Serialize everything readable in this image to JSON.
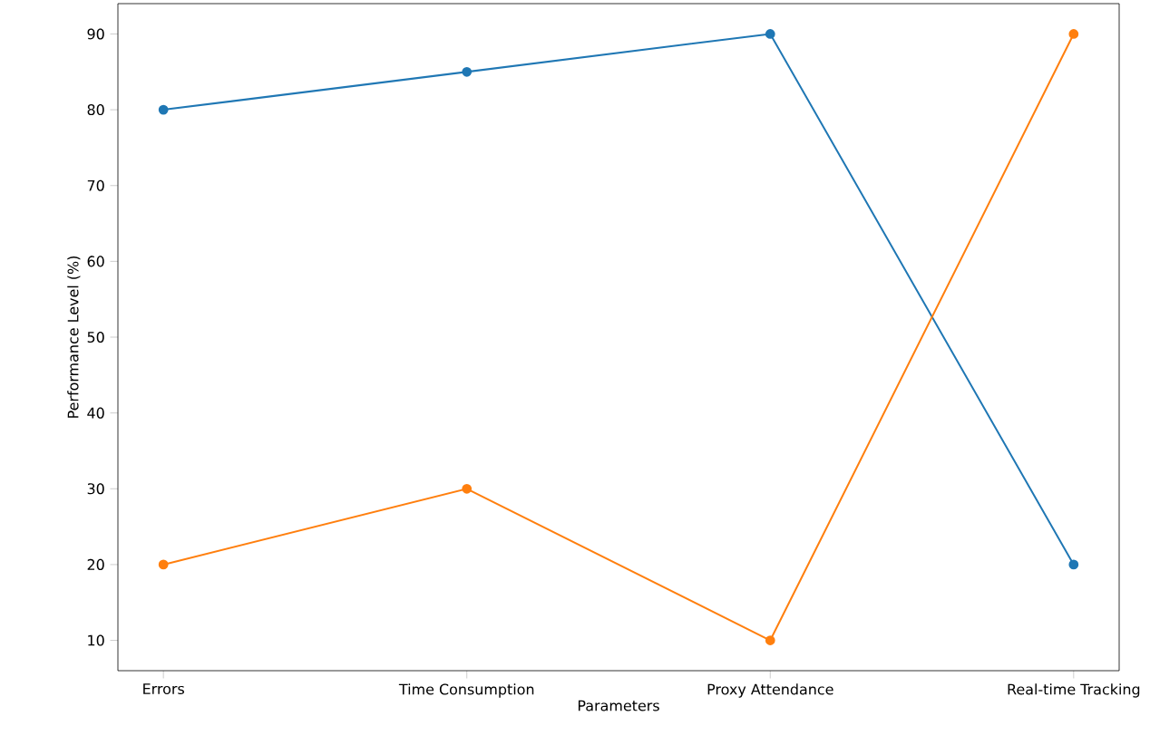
{
  "chart_data": {
    "type": "line",
    "xlabel": "Parameters",
    "ylabel": "Performance Level (%)",
    "categories": [
      "Errors",
      "Time Consumption",
      "Proxy Attendance",
      "Real-time Tracking"
    ],
    "series": [
      {
        "color": "#1f77b4",
        "values": [
          80,
          85,
          90,
          20
        ]
      },
      {
        "color": "#ff7f0e",
        "values": [
          20,
          30,
          10,
          90
        ]
      }
    ],
    "ylim": [
      6,
      94
    ],
    "yticks": [
      10,
      20,
      30,
      40,
      50,
      60,
      70,
      80,
      90
    ],
    "marker": "circle",
    "grid": false
  }
}
